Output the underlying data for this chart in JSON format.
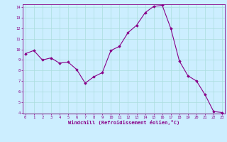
{
  "x": [
    0,
    1,
    2,
    3,
    4,
    5,
    6,
    7,
    8,
    9,
    10,
    11,
    12,
    13,
    14,
    15,
    16,
    17,
    18,
    19,
    20,
    21,
    22,
    23
  ],
  "y": [
    9.6,
    9.9,
    9.0,
    9.2,
    8.7,
    8.8,
    8.1,
    6.8,
    7.4,
    7.8,
    9.9,
    10.3,
    11.6,
    12.3,
    13.5,
    14.1,
    14.2,
    12.0,
    8.9,
    7.5,
    7.0,
    5.7,
    4.1,
    4.0
  ],
  "line_color": "#880088",
  "marker_color": "#880088",
  "bg_color": "#cceeff",
  "grid_color": "#aadddd",
  "xlabel": "Windchill (Refroidissement éolien,°C)",
  "ylim_min": 4,
  "ylim_max": 14,
  "xlim_min": 0,
  "xlim_max": 23,
  "yticks": [
    4,
    5,
    6,
    7,
    8,
    9,
    10,
    11,
    12,
    13,
    14
  ],
  "xticks": [
    0,
    1,
    2,
    3,
    4,
    5,
    6,
    7,
    8,
    9,
    10,
    11,
    12,
    13,
    14,
    15,
    16,
    17,
    18,
    19,
    20,
    21,
    22,
    23
  ],
  "text_color": "#880088",
  "tick_fontsize": 4.0,
  "xlabel_fontsize": 5.0,
  "linewidth": 0.8,
  "markersize": 1.8
}
